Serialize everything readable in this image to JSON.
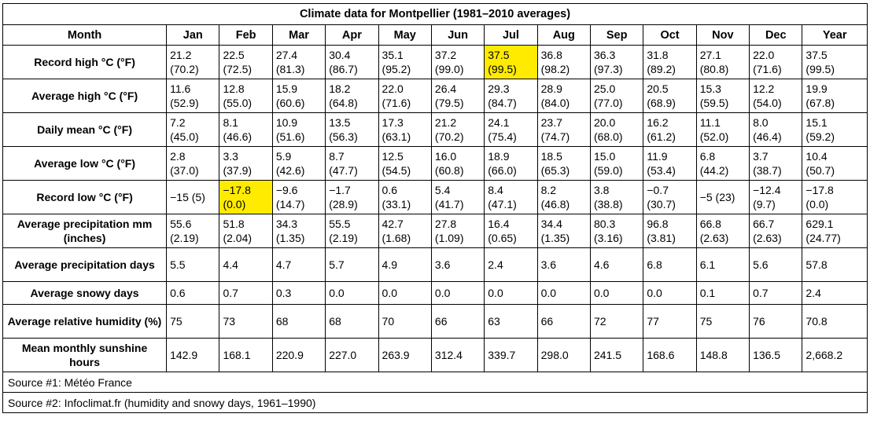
{
  "title": "Climate data for Montpellier (1981–2010 averages)",
  "header": {
    "month_label": "Month",
    "columns": [
      "Jan",
      "Feb",
      "Mar",
      "Apr",
      "May",
      "Jun",
      "Jul",
      "Aug",
      "Sep",
      "Oct",
      "Nov",
      "Dec",
      "Year"
    ]
  },
  "rows": [
    {
      "label": "Record high °C (°F)",
      "cells": [
        [
          "21.2",
          "(70.2)"
        ],
        [
          "22.5",
          "(72.5)"
        ],
        [
          "27.4",
          "(81.3)"
        ],
        [
          "30.4",
          "(86.7)"
        ],
        [
          "35.1",
          "(95.2)"
        ],
        [
          "37.2",
          "(99.0)"
        ],
        [
          "37.5",
          "(99.5)"
        ],
        [
          "36.8",
          "(98.2)"
        ],
        [
          "36.3",
          "(97.3)"
        ],
        [
          "31.8",
          "(89.2)"
        ],
        [
          "27.1",
          "(80.8)"
        ],
        [
          "22.0",
          "(71.6)"
        ],
        [
          "37.5",
          "(99.5)"
        ]
      ],
      "highlight_index": 6
    },
    {
      "label": "Average high °C (°F)",
      "cells": [
        [
          "11.6",
          "(52.9)"
        ],
        [
          "12.8",
          "(55.0)"
        ],
        [
          "15.9",
          "(60.6)"
        ],
        [
          "18.2",
          "(64.8)"
        ],
        [
          "22.0",
          "(71.6)"
        ],
        [
          "26.4",
          "(79.5)"
        ],
        [
          "29.3",
          "(84.7)"
        ],
        [
          "28.9",
          "(84.0)"
        ],
        [
          "25.0",
          "(77.0)"
        ],
        [
          "20.5",
          "(68.9)"
        ],
        [
          "15.3",
          "(59.5)"
        ],
        [
          "12.2",
          "(54.0)"
        ],
        [
          "19.9",
          "(67.8)"
        ]
      ],
      "highlight_index": -1
    },
    {
      "label": "Daily mean °C (°F)",
      "cells": [
        [
          "7.2",
          "(45.0)"
        ],
        [
          "8.1",
          "(46.6)"
        ],
        [
          "10.9",
          "(51.6)"
        ],
        [
          "13.5",
          "(56.3)"
        ],
        [
          "17.3",
          "(63.1)"
        ],
        [
          "21.2",
          "(70.2)"
        ],
        [
          "24.1",
          "(75.4)"
        ],
        [
          "23.7",
          "(74.7)"
        ],
        [
          "20.0",
          "(68.0)"
        ],
        [
          "16.2",
          "(61.2)"
        ],
        [
          "11.1",
          "(52.0)"
        ],
        [
          "8.0",
          "(46.4)"
        ],
        [
          "15.1",
          "(59.2)"
        ]
      ],
      "highlight_index": -1
    },
    {
      "label": "Average low °C (°F)",
      "cells": [
        [
          "2.8",
          "(37.0)"
        ],
        [
          "3.3",
          "(37.9)"
        ],
        [
          "5.9",
          "(42.6)"
        ],
        [
          "8.7",
          "(47.7)"
        ],
        [
          "12.5",
          "(54.5)"
        ],
        [
          "16.0",
          "(60.8)"
        ],
        [
          "18.9",
          "(66.0)"
        ],
        [
          "18.5",
          "(65.3)"
        ],
        [
          "15.0",
          "(59.0)"
        ],
        [
          "11.9",
          "(53.4)"
        ],
        [
          "6.8",
          "(44.2)"
        ],
        [
          "3.7",
          "(38.7)"
        ],
        [
          "10.4",
          "(50.7)"
        ]
      ],
      "highlight_index": -1
    },
    {
      "label": "Record low °C (°F)",
      "cells": [
        [
          "−15 (5)"
        ],
        [
          "−17.8",
          "(0.0)"
        ],
        [
          "−9.6",
          "(14.7)"
        ],
        [
          "−1.7",
          "(28.9)"
        ],
        [
          "0.6",
          "(33.1)"
        ],
        [
          "5.4",
          "(41.7)"
        ],
        [
          "8.4",
          "(47.1)"
        ],
        [
          "8.2",
          "(46.8)"
        ],
        [
          "3.8",
          "(38.8)"
        ],
        [
          "−0.7",
          "(30.7)"
        ],
        [
          "−5 (23)"
        ],
        [
          "−12.4",
          "(9.7)"
        ],
        [
          "−17.8",
          "(0.0)"
        ]
      ],
      "highlight_index": 1
    },
    {
      "label": "Average precipitation mm (inches)",
      "cells": [
        [
          "55.6",
          "(2.19)"
        ],
        [
          "51.8",
          "(2.04)"
        ],
        [
          "34.3",
          "(1.35)"
        ],
        [
          "55.5",
          "(2.19)"
        ],
        [
          "42.7",
          "(1.68)"
        ],
        [
          "27.8",
          "(1.09)"
        ],
        [
          "16.4",
          "(0.65)"
        ],
        [
          "34.4",
          "(1.35)"
        ],
        [
          "80.3",
          "(3.16)"
        ],
        [
          "96.8",
          "(3.81)"
        ],
        [
          "66.8",
          "(2.63)"
        ],
        [
          "66.7",
          "(2.63)"
        ],
        [
          "629.1",
          "(24.77)"
        ]
      ],
      "highlight_index": -1
    },
    {
      "label": "Average precipitation days",
      "cells": [
        [
          "5.5"
        ],
        [
          "4.4"
        ],
        [
          "4.7"
        ],
        [
          "5.7"
        ],
        [
          "4.9"
        ],
        [
          "3.6"
        ],
        [
          "2.4"
        ],
        [
          "3.6"
        ],
        [
          "4.6"
        ],
        [
          "6.8"
        ],
        [
          "6.1"
        ],
        [
          "5.6"
        ],
        [
          "57.8"
        ]
      ],
      "highlight_index": -1
    },
    {
      "label": "Average snowy days",
      "cells": [
        [
          "0.6"
        ],
        [
          "0.7"
        ],
        [
          "0.3"
        ],
        [
          "0.0"
        ],
        [
          "0.0"
        ],
        [
          "0.0"
        ],
        [
          "0.0"
        ],
        [
          "0.0"
        ],
        [
          "0.0"
        ],
        [
          "0.0"
        ],
        [
          "0.1"
        ],
        [
          "0.7"
        ],
        [
          "2.4"
        ]
      ],
      "highlight_index": -1
    },
    {
      "label": "Average relative humidity (%)",
      "cells": [
        [
          "75"
        ],
        [
          "73"
        ],
        [
          "68"
        ],
        [
          "68"
        ],
        [
          "70"
        ],
        [
          "66"
        ],
        [
          "63"
        ],
        [
          "66"
        ],
        [
          "72"
        ],
        [
          "77"
        ],
        [
          "75"
        ],
        [
          "76"
        ],
        [
          "70.8"
        ]
      ],
      "highlight_index": -1
    },
    {
      "label": "Mean monthly sunshine hours",
      "cells": [
        [
          "142.9"
        ],
        [
          "168.1"
        ],
        [
          "220.9"
        ],
        [
          "227.0"
        ],
        [
          "263.9"
        ],
        [
          "312.4"
        ],
        [
          "339.7"
        ],
        [
          "298.0"
        ],
        [
          "241.5"
        ],
        [
          "168.6"
        ],
        [
          "148.8"
        ],
        [
          "136.5"
        ],
        [
          "2,668.2"
        ]
      ],
      "highlight_index": -1
    }
  ],
  "sources": [
    "Source #1: Météo France",
    "Source #2: Infoclimat.fr (humidity and snowy days, 1961–1990)"
  ],
  "colors": {
    "highlight": "#ffeb00",
    "border": "#000000"
  }
}
